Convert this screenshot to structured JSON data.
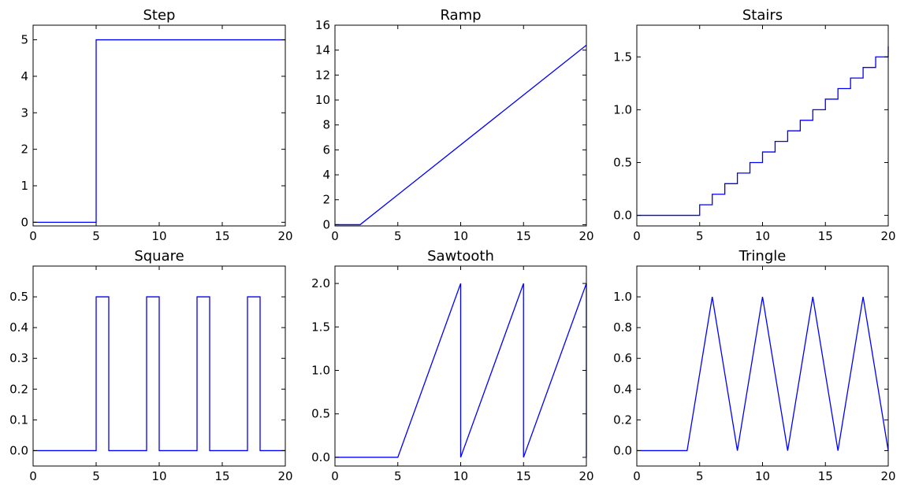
{
  "chart_data": [
    {
      "type": "line",
      "title": "Step",
      "xlim": [
        0,
        20
      ],
      "ylim": [
        -0.1,
        5.4
      ],
      "xticks": [
        0,
        5,
        10,
        15,
        20
      ],
      "yticks": [
        0,
        1,
        2,
        3,
        4,
        5
      ],
      "x": [
        0,
        5,
        5,
        20
      ],
      "y": [
        0,
        0,
        5,
        5
      ],
      "color": "#0000ff"
    },
    {
      "type": "line",
      "title": "Ramp",
      "xlim": [
        0,
        20
      ],
      "ylim": [
        -0.1,
        16
      ],
      "xticks": [
        0,
        5,
        10,
        15,
        20
      ],
      "yticks": [
        0,
        2,
        4,
        6,
        8,
        10,
        12,
        14,
        16
      ],
      "x": [
        0,
        2,
        20
      ],
      "y": [
        0,
        0,
        14.4
      ],
      "color": "#0000ff"
    },
    {
      "type": "line",
      "title": "Stairs",
      "xlim": [
        0,
        20
      ],
      "ylim": [
        -0.1,
        1.8
      ],
      "xticks": [
        0,
        5,
        10,
        15,
        20
      ],
      "yticks": [
        "0.0",
        "0.5",
        "1.0",
        "1.5"
      ],
      "x": [
        0,
        5,
        5,
        6,
        6,
        7,
        7,
        8,
        8,
        9,
        9,
        10,
        10,
        11,
        11,
        12,
        12,
        13,
        13,
        14,
        14,
        15,
        15,
        16,
        16,
        17,
        17,
        18,
        18,
        19,
        19,
        20,
        20
      ],
      "y": [
        0,
        0,
        0.1,
        0.1,
        0.2,
        0.2,
        0.3,
        0.3,
        0.4,
        0.4,
        0.5,
        0.5,
        0.6,
        0.6,
        0.7,
        0.7,
        0.8,
        0.8,
        0.9,
        0.9,
        1.0,
        1.0,
        1.1,
        1.1,
        1.2,
        1.2,
        1.3,
        1.3,
        1.4,
        1.4,
        1.5,
        1.5,
        1.6
      ],
      "color": "#0000ff"
    },
    {
      "type": "line",
      "title": "Square",
      "xlim": [
        0,
        20
      ],
      "ylim": [
        -0.05,
        0.6
      ],
      "xticks": [
        0,
        5,
        10,
        15,
        20
      ],
      "yticks": [
        "0.0",
        "0.1",
        "0.2",
        "0.3",
        "0.4",
        "0.5"
      ],
      "x": [
        0,
        5,
        5,
        6,
        6,
        9,
        9,
        10,
        10,
        13,
        13,
        14,
        14,
        17,
        17,
        18,
        18,
        20
      ],
      "y": [
        0,
        0,
        0.5,
        0.5,
        0,
        0,
        0.5,
        0.5,
        0,
        0,
        0.5,
        0.5,
        0,
        0,
        0.5,
        0.5,
        0,
        0
      ],
      "color": "#0000ff"
    },
    {
      "type": "line",
      "title": "Sawtooth",
      "xlim": [
        0,
        20
      ],
      "ylim": [
        -0.1,
        2.2
      ],
      "xticks": [
        0,
        5,
        10,
        15,
        20
      ],
      "yticks": [
        "0.0",
        "0.5",
        "1.0",
        "1.5",
        "2.0"
      ],
      "x": [
        0,
        5,
        10,
        10,
        15,
        15,
        20,
        20
      ],
      "y": [
        0,
        0,
        2,
        0,
        2,
        0,
        2,
        0
      ],
      "color": "#0000ff"
    },
    {
      "type": "line",
      "title": "Tringle",
      "xlim": [
        0,
        20
      ],
      "ylim": [
        -0.1,
        1.2
      ],
      "xticks": [
        0,
        5,
        10,
        15,
        20
      ],
      "yticks": [
        "0.0",
        "0.2",
        "0.4",
        "0.6",
        "0.8",
        "1.0"
      ],
      "x": [
        0,
        4,
        6,
        8,
        10,
        12,
        14,
        16,
        18,
        20
      ],
      "y": [
        0,
        0,
        1,
        0,
        1,
        0,
        1,
        0,
        1,
        0
      ],
      "color": "#0000ff"
    }
  ]
}
